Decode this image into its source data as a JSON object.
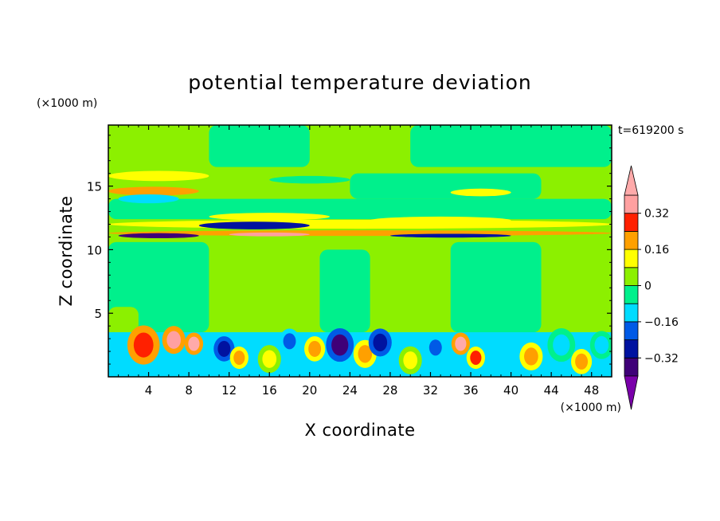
{
  "chart_data": {
    "type": "heatmap",
    "title": "potential temperature deviation",
    "time_label": "t=619200 s",
    "xlabel": "X coordinate",
    "ylabel": "Z coordinate",
    "x_unit": "(×1000 m)",
    "y_unit": "(×1000 m)",
    "xlim": [
      0,
      50
    ],
    "ylim": [
      0,
      19.8
    ],
    "x_ticks": [
      4,
      8,
      12,
      16,
      20,
      24,
      28,
      32,
      36,
      40,
      44,
      48
    ],
    "x_tick_labels": [
      "4",
      "8",
      "12",
      "16",
      "20",
      "24",
      "28",
      "32",
      "36",
      "40",
      "44",
      "48"
    ],
    "y_ticks": [
      5,
      10,
      15
    ],
    "y_tick_labels": [
      "5",
      "10",
      "15"
    ],
    "colorbar": {
      "levels": [
        -0.4,
        -0.32,
        -0.24,
        -0.16,
        -0.08,
        0,
        0.08,
        0.16,
        0.24,
        0.32,
        0.4
      ],
      "tick_values": [
        -0.32,
        -0.16,
        0,
        0.16,
        0.32
      ],
      "tick_labels": [
        "−0.32",
        "−0.16",
        "0",
        "0.16",
        "0.32"
      ],
      "colors": [
        "#3f0078",
        "#0012a0",
        "#005ae6",
        "#00dcff",
        "#00f08c",
        "#8cf000",
        "#ffff00",
        "#ffa000",
        "#ff2000",
        "#ffa0a0"
      ],
      "under_color": "#7a00aa",
      "over_color": "#ffaaaa"
    },
    "background_value": 0.04,
    "bands": [
      {
        "z": 15.8,
        "x0": 0,
        "x1": 10,
        "half_depth": 0.4,
        "value": 0.12
      },
      {
        "z": 14.6,
        "x0": 0,
        "x1": 9,
        "half_depth": 0.35,
        "value": 0.22
      },
      {
        "z": 15.5,
        "x0": 16,
        "x1": 24,
        "half_depth": 0.3,
        "value": -0.05
      },
      {
        "z": 14.0,
        "x0": 1,
        "x1": 7,
        "half_depth": 0.35,
        "value": -0.12
      },
      {
        "z": 14.5,
        "x0": 34,
        "x1": 40,
        "half_depth": 0.3,
        "value": 0.12
      },
      {
        "z": 13.0,
        "x0": 14,
        "x1": 50,
        "half_depth": 0.4,
        "value": -0.06
      },
      {
        "z": 12.6,
        "x0": 10,
        "x1": 22,
        "half_depth": 0.3,
        "value": 0.12
      },
      {
        "z": 12.3,
        "x0": 26,
        "x1": 40,
        "half_depth": 0.3,
        "value": 0.12
      },
      {
        "z": 12.0,
        "x0": 0,
        "x1": 50,
        "half_depth": 0.35,
        "value": 0.14
      },
      {
        "z": 11.9,
        "x0": 9,
        "x1": 20,
        "half_depth": 0.3,
        "value": -0.3
      },
      {
        "z": 11.3,
        "x0": 0,
        "x1": 50,
        "half_depth": 0.22,
        "value": 0.22
      },
      {
        "z": 11.1,
        "x0": 1,
        "x1": 9,
        "half_depth": 0.2,
        "value": -0.34
      },
      {
        "z": 11.1,
        "x0": 28,
        "x1": 40,
        "half_depth": 0.15,
        "value": -0.3
      },
      {
        "z": 11.2,
        "x0": 12,
        "x1": 20,
        "half_depth": 0.15,
        "value": 0.38
      }
    ],
    "regions": [
      {
        "x0": 0,
        "x1": 10,
        "z0": 3.5,
        "z1": 10.6,
        "value": -0.04
      },
      {
        "x0": 21,
        "x1": 26,
        "z0": 3.5,
        "z1": 10.0,
        "value": -0.04
      },
      {
        "x0": 34,
        "x1": 43,
        "z0": 3.5,
        "z1": 10.6,
        "value": -0.04
      },
      {
        "x0": 0,
        "x1": 3,
        "z0": 3.5,
        "z1": 5.5,
        "value": 0.04
      },
      {
        "x0": 10,
        "x1": 20,
        "z0": 16.5,
        "z1": 19.8,
        "value": -0.04
      },
      {
        "x0": 30,
        "x1": 50,
        "z0": 16.5,
        "z1": 19.8,
        "value": -0.04
      },
      {
        "x0": 24,
        "x1": 43,
        "z0": 14.0,
        "z1": 16.0,
        "value": -0.04
      },
      {
        "x0": 0,
        "x1": 50,
        "z0": 12.4,
        "z1": 14.0,
        "value": -0.04
      }
    ],
    "boundary_layer": {
      "z_top": 3.5,
      "blobs": [
        {
          "x": 3.5,
          "z": 2.5,
          "r": 1.4,
          "value": 0.3
        },
        {
          "x": 6.5,
          "z": 2.9,
          "r": 1.0,
          "value": 0.34
        },
        {
          "x": 8.5,
          "z": 2.6,
          "r": 0.8,
          "value": 0.4
        },
        {
          "x": 11.5,
          "z": 2.2,
          "r": 0.9,
          "value": -0.3
        },
        {
          "x": 13.0,
          "z": 1.5,
          "r": 0.8,
          "value": 0.2
        },
        {
          "x": 16.0,
          "z": 1.4,
          "r": 1.0,
          "value": 0.12
        },
        {
          "x": 18.0,
          "z": 2.8,
          "r": 0.9,
          "value": -0.22
        },
        {
          "x": 20.5,
          "z": 2.2,
          "r": 0.9,
          "value": 0.2
        },
        {
          "x": 23.0,
          "z": 2.5,
          "r": 1.2,
          "value": -0.36
        },
        {
          "x": 25.5,
          "z": 1.8,
          "r": 1.0,
          "value": 0.22
        },
        {
          "x": 27.0,
          "z": 2.7,
          "r": 1.0,
          "value": -0.3
        },
        {
          "x": 30.0,
          "z": 1.3,
          "r": 1.0,
          "value": 0.14
        },
        {
          "x": 32.5,
          "z": 2.3,
          "r": 0.9,
          "value": -0.22
        },
        {
          "x": 35.0,
          "z": 2.6,
          "r": 0.8,
          "value": 0.4
        },
        {
          "x": 36.5,
          "z": 1.5,
          "r": 0.8,
          "value": 0.24
        },
        {
          "x": 39.0,
          "z": 2.2,
          "r": 1.0,
          "value": -0.16
        },
        {
          "x": 42.0,
          "z": 1.6,
          "r": 1.0,
          "value": 0.16
        },
        {
          "x": 45.0,
          "z": 2.5,
          "r": 1.2,
          "value": -0.12
        },
        {
          "x": 47.0,
          "z": 1.2,
          "r": 0.9,
          "value": 0.22
        },
        {
          "x": 49.0,
          "z": 2.5,
          "r": 1.0,
          "value": -0.12
        }
      ]
    }
  }
}
